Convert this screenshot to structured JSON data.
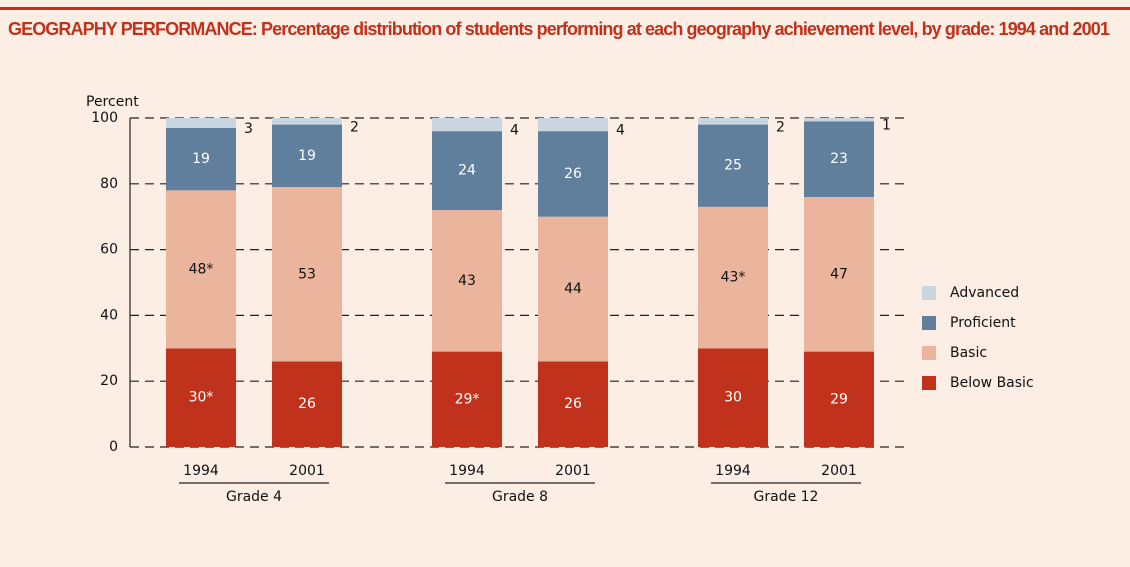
{
  "chart_data": {
    "type": "stacked_bar",
    "title": "GEOGRAPHY PERFORMANCE: Percentage distribution of students performing at each geography achievement level, by grade: 1994 and 2001",
    "y_label": "Percent",
    "categories": [
      "1994",
      "2001",
      "1994",
      "2001",
      "1994",
      "2001"
    ],
    "groups": [
      "Grade 4",
      "Grade 8",
      "Grade 12"
    ],
    "series": [
      {
        "name": "Below Basic",
        "color": "#c0321c",
        "values": [
          30,
          26,
          29,
          26,
          30,
          29
        ],
        "value_labels": [
          "30*",
          "26",
          "29*",
          "26",
          "30",
          "29"
        ]
      },
      {
        "name": "Basic",
        "color": "#ebb59d",
        "values": [
          48,
          53,
          43,
          44,
          43,
          47
        ],
        "value_labels": [
          "48*",
          "53",
          "43",
          "44",
          "43*",
          "47"
        ]
      },
      {
        "name": "Proficient",
        "color": "#5f7f9d",
        "values": [
          19,
          19,
          24,
          26,
          25,
          23
        ]
      },
      {
        "name": "Advanced",
        "color": "#c9d5e1",
        "values": [
          3,
          2,
          4,
          4,
          2,
          1
        ]
      }
    ],
    "ylim": [
      0,
      100
    ],
    "yticks": [
      0,
      20,
      40,
      60,
      80,
      100
    ],
    "grid": true,
    "legend": "right"
  }
}
